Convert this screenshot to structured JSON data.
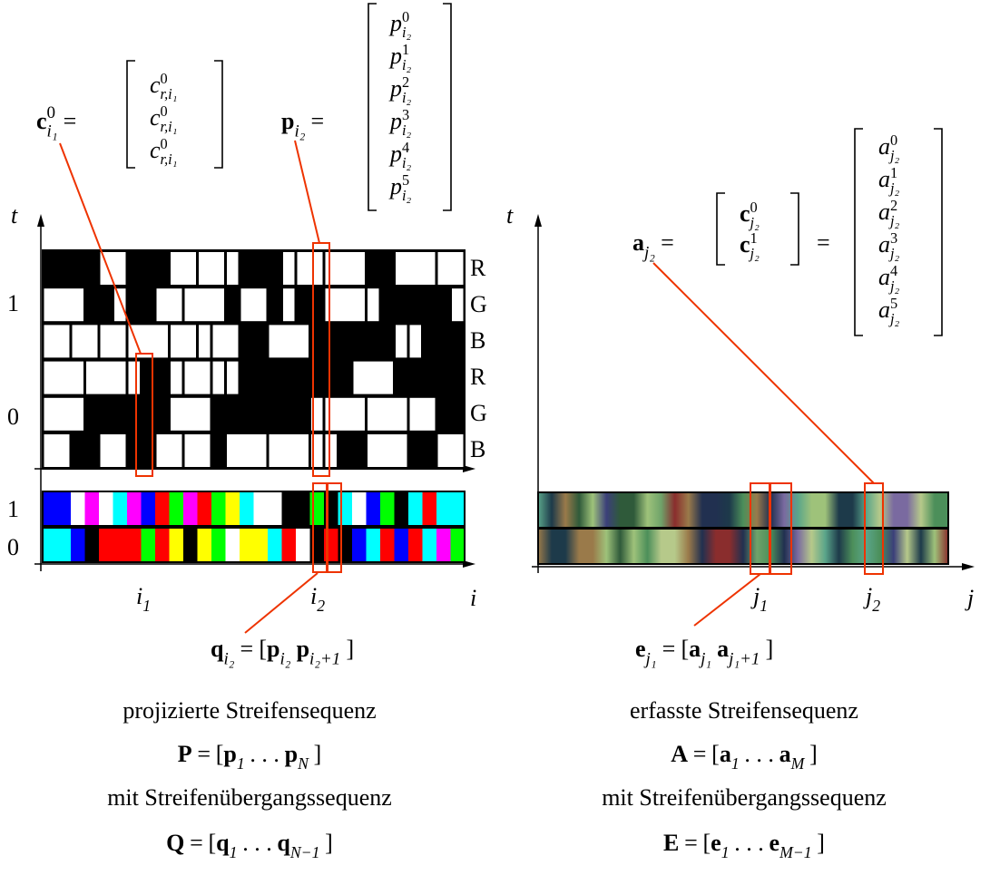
{
  "left": {
    "c": {
      "lhs": [
        "c",
        "0",
        "i₁",
        "="
      ],
      "entries": [
        [
          "c",
          "0",
          "r,i₁"
        ],
        [
          "c",
          "0",
          "r,i₁"
        ],
        [
          "c",
          "0",
          "r,i₁"
        ]
      ]
    },
    "p": {
      "lhs": [
        "p",
        "i₂",
        "="
      ],
      "entries": [
        [
          "p",
          "0",
          "i₂"
        ],
        [
          "p",
          "1",
          "i₂"
        ],
        [
          "p",
          "2",
          "i₂"
        ],
        [
          "p",
          "3",
          "i₂"
        ],
        [
          "p",
          "4",
          "i₂"
        ],
        [
          "p",
          "5",
          "i₂"
        ]
      ]
    },
    "t_axis": "t",
    "i_axis": "i",
    "pattern_ticks": [
      "1",
      "0"
    ],
    "channels": [
      "R",
      "G",
      "B",
      "R",
      "G",
      "B"
    ],
    "strip_ticks": [
      "1",
      "0"
    ],
    "i_marks": [
      [
        "i",
        "1"
      ],
      [
        "i",
        "2"
      ]
    ],
    "q": [
      "q",
      "i₂",
      "=",
      "[",
      "p",
      "i₂",
      "p",
      "i₂+1",
      "]"
    ],
    "captions": [
      [
        "projizierte Streifensequenz"
      ],
      [
        "P",
        "=",
        "[",
        "p",
        "1",
        ". . .",
        "p",
        "N",
        "]"
      ],
      [
        "mit Streifenübergangssequenz"
      ],
      [
        "Q",
        "=",
        "[",
        "q",
        "1",
        ". . .",
        "q",
        "N−1",
        "]"
      ]
    ]
  },
  "right": {
    "a": {
      "lhs": [
        "a",
        "j₂",
        "="
      ],
      "mid": [
        [
          "c",
          "0",
          "j₂"
        ],
        [
          "c",
          "1",
          "j₂"
        ]
      ],
      "eq": "=",
      "entries": [
        [
          "a",
          "0",
          "j₂"
        ],
        [
          "a",
          "1",
          "j₂"
        ],
        [
          "a",
          "2",
          "j₂"
        ],
        [
          "a",
          "3",
          "j₂"
        ],
        [
          "a",
          "4",
          "j₂"
        ],
        [
          "a",
          "5",
          "j₂"
        ]
      ]
    },
    "t_axis": "t",
    "j_axis": "j",
    "j_marks": [
      [
        "j",
        "1"
      ],
      [
        "j",
        "2"
      ]
    ],
    "e": [
      "e",
      "j₁",
      "=",
      "[",
      "a",
      "j₁",
      "a",
      "j₁+1",
      "]"
    ],
    "captions": [
      [
        "erfasste Streifensequenz"
      ],
      [
        "A",
        "=",
        "[",
        "a",
        "1",
        ". . .",
        "a",
        "M",
        "]"
      ],
      [
        "mit Streifenübergangssequenz"
      ],
      [
        "E",
        "=",
        "[",
        "e",
        "1",
        ". . .",
        "e",
        "M−1",
        "]"
      ]
    ]
  }
}
